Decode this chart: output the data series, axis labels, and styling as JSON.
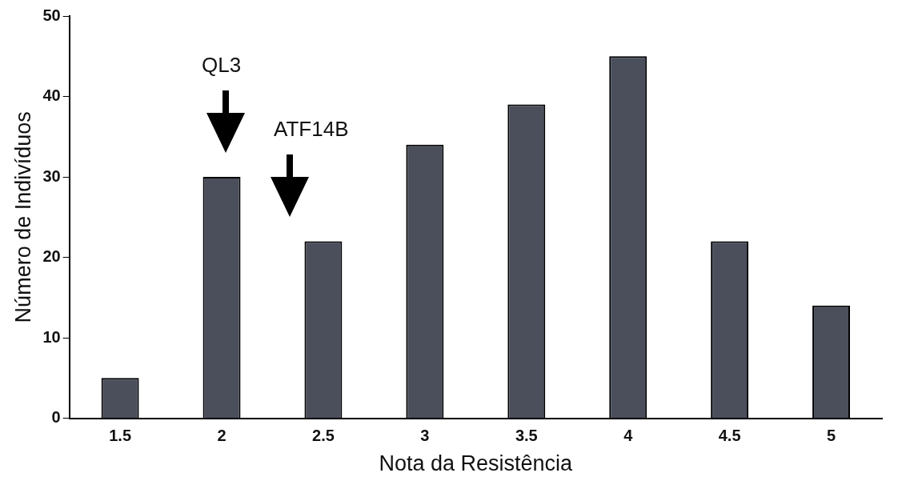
{
  "chart_data": {
    "type": "bar",
    "xlabel": "Nota da Resistência",
    "ylabel": "Número de Indivíduos",
    "categories": [
      "1.5",
      "2",
      "2.5",
      "3",
      "3.5",
      "4",
      "4.5",
      "5"
    ],
    "values": [
      5,
      30,
      22,
      34,
      39,
      45,
      22,
      14
    ],
    "color": "#4b4f5c",
    "ylim": [
      0,
      50
    ],
    "yticks": [
      0,
      10,
      20,
      30,
      40,
      50
    ],
    "grid": false,
    "annotations": [
      "QL3",
      "ATF14B"
    ]
  }
}
